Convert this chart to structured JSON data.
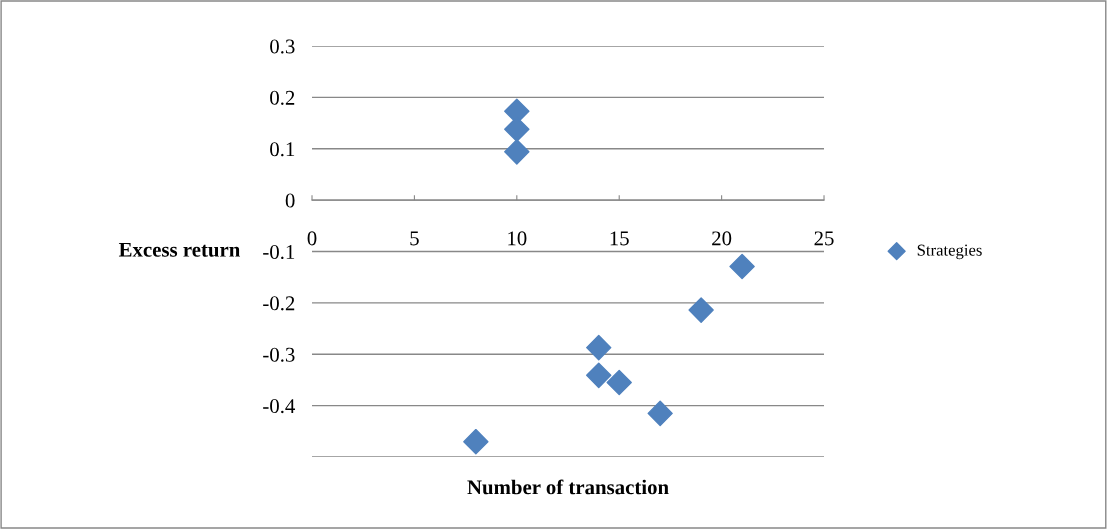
{
  "chart_data": {
    "type": "scatter",
    "xlabel": "Number of transaction",
    "ylabel": "Excess return",
    "series": [
      {
        "name": "Strategies",
        "color": "#4f81bd",
        "x": [
          10,
          10,
          10,
          21,
          19,
          14,
          14,
          15,
          17,
          8
        ],
        "values": [
          0.173,
          0.138,
          0.094,
          -0.129,
          -0.214,
          -0.287,
          -0.341,
          -0.355,
          -0.415,
          -0.47
        ]
      }
    ],
    "xlim": [
      0,
      25
    ],
    "xticks": [
      0,
      5,
      10,
      15,
      20,
      25
    ],
    "ylim": [
      -0.5,
      0.3
    ],
    "yticks": [
      0.3,
      0.2,
      0.1,
      0,
      -0.1,
      -0.2,
      -0.3,
      -0.4,
      {
        "value": -0.5,
        "label": null
      }
    ],
    "grid": "y",
    "legend": "right",
    "marker": "diamond"
  }
}
